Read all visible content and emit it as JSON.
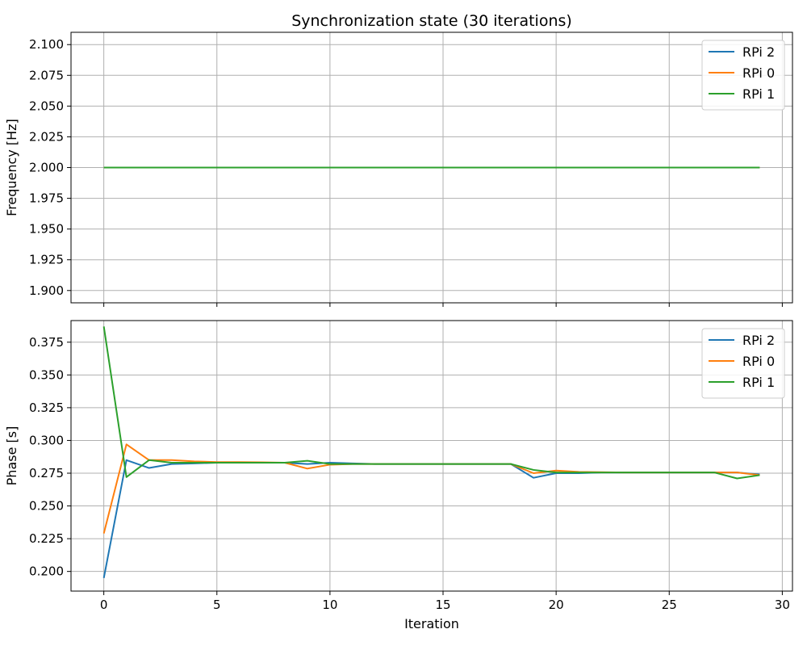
{
  "chart_data": [
    {
      "type": "line",
      "title": "Synchronization state (30 iterations)",
      "xlabel": "",
      "ylabel": "Frequency [Hz]",
      "xlim": [
        -1.45,
        30.45
      ],
      "ylim": [
        1.89,
        2.11
      ],
      "xticks": [
        0,
        5,
        10,
        15,
        20,
        25,
        30
      ],
      "yticks": [
        "1.900",
        "1.925",
        "1.950",
        "1.975",
        "2.000",
        "2.025",
        "2.050",
        "2.075",
        "2.100"
      ],
      "show_xtick_labels": false,
      "grid": true,
      "legend": "top-right",
      "x": [
        0,
        1,
        2,
        3,
        4,
        5,
        6,
        7,
        8,
        9,
        10,
        11,
        12,
        13,
        14,
        15,
        16,
        17,
        18,
        19,
        20,
        21,
        22,
        23,
        24,
        25,
        26,
        27,
        28,
        29
      ],
      "series": [
        {
          "name": "RPi 2",
          "color": "#1f77b4",
          "values": [
            2,
            2,
            2,
            2,
            2,
            2,
            2,
            2,
            2,
            2,
            2,
            2,
            2,
            2,
            2,
            2,
            2,
            2,
            2,
            2,
            2,
            2,
            2,
            2,
            2,
            2,
            2,
            2,
            2,
            2
          ]
        },
        {
          "name": "RPi 0",
          "color": "#ff7f0e",
          "values": [
            2,
            2,
            2,
            2,
            2,
            2,
            2,
            2,
            2,
            2,
            2,
            2,
            2,
            2,
            2,
            2,
            2,
            2,
            2,
            2,
            2,
            2,
            2,
            2,
            2,
            2,
            2,
            2,
            2,
            2
          ]
        },
        {
          "name": "RPi 1",
          "color": "#2ca02c",
          "values": [
            2,
            2,
            2,
            2,
            2,
            2,
            2,
            2,
            2,
            2,
            2,
            2,
            2,
            2,
            2,
            2,
            2,
            2,
            2,
            2,
            2,
            2,
            2,
            2,
            2,
            2,
            2,
            2,
            2,
            2
          ]
        }
      ]
    },
    {
      "type": "line",
      "title": "",
      "xlabel": "Iteration",
      "ylabel": "Phase [s]",
      "xlim": [
        -1.45,
        30.45
      ],
      "ylim": [
        0.185,
        0.3915
      ],
      "xticks": [
        0,
        5,
        10,
        15,
        20,
        25,
        30
      ],
      "yticks": [
        "0.200",
        "0.225",
        "0.250",
        "0.275",
        "0.300",
        "0.325",
        "0.350",
        "0.375"
      ],
      "show_xtick_labels": true,
      "grid": true,
      "legend": "top-right",
      "x": [
        0,
        1,
        2,
        3,
        4,
        5,
        6,
        7,
        8,
        9,
        10,
        11,
        12,
        13,
        14,
        15,
        16,
        17,
        18,
        19,
        20,
        21,
        22,
        23,
        24,
        25,
        26,
        27,
        28,
        29
      ],
      "series": [
        {
          "name": "RPi 2",
          "color": "#1f77b4",
          "values": [
            0.195,
            0.285,
            0.279,
            0.282,
            0.2825,
            0.283,
            0.283,
            0.283,
            0.283,
            0.282,
            0.283,
            0.2825,
            0.282,
            0.282,
            0.282,
            0.282,
            0.282,
            0.282,
            0.282,
            0.2715,
            0.275,
            0.275,
            0.2755,
            0.2755,
            0.2755,
            0.2755,
            0.2755,
            0.2755,
            0.2755,
            0.274
          ]
        },
        {
          "name": "RPi 0",
          "color": "#ff7f0e",
          "values": [
            0.229,
            0.297,
            0.285,
            0.285,
            0.284,
            0.2835,
            0.2835,
            0.2833,
            0.283,
            0.2785,
            0.2815,
            0.282,
            0.282,
            0.282,
            0.282,
            0.282,
            0.282,
            0.282,
            0.282,
            0.275,
            0.277,
            0.276,
            0.2758,
            0.2755,
            0.2755,
            0.2755,
            0.2755,
            0.2755,
            0.2755,
            0.2735
          ]
        },
        {
          "name": "RPi 1",
          "color": "#2ca02c",
          "values": [
            0.387,
            0.272,
            0.285,
            0.283,
            0.283,
            0.283,
            0.283,
            0.283,
            0.283,
            0.2845,
            0.282,
            0.282,
            0.282,
            0.282,
            0.282,
            0.282,
            0.282,
            0.282,
            0.282,
            0.2775,
            0.2755,
            0.2755,
            0.2755,
            0.2755,
            0.2755,
            0.2755,
            0.2755,
            0.2755,
            0.271,
            0.2735
          ]
        }
      ]
    }
  ]
}
